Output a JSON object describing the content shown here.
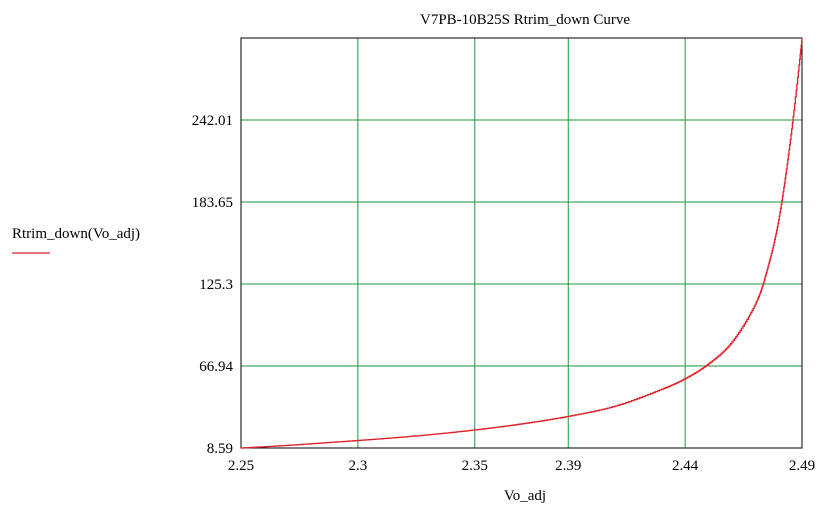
{
  "chart_data": {
    "type": "line",
    "title": "V7PB-10B25S Rtrim_down Curve",
    "xlabel": "Vo_adj",
    "ylabel": "Rtrim_down(Vo_adj)",
    "xlim": [
      2.25,
      2.49
    ],
    "ylim": [
      8.59,
      300.37
    ],
    "x_ticks": [
      2.25,
      2.3,
      2.35,
      2.39,
      2.44,
      2.49
    ],
    "x_tick_labels": [
      "2.25",
      "2.3",
      "2.35",
      "2.39",
      "2.44",
      "2.49"
    ],
    "y_ticks": [
      8.59,
      66.94,
      125.3,
      183.65,
      242.01
    ],
    "y_tick_labels": [
      "8.59",
      "66.94",
      "125.3",
      "183.65",
      "242.01"
    ],
    "grid": true,
    "series": [
      {
        "name": "Rtrim_down(Vo_adj)",
        "color": "#e0202a",
        "x": [
          2.25,
          2.27,
          2.29,
          2.31,
          2.33,
          2.35,
          2.37,
          2.39,
          2.41,
          2.43,
          2.44,
          2.45,
          2.46,
          2.47,
          2.475,
          2.48,
          2.485,
          2.49
        ],
        "y": [
          8.59,
          10.5,
          12.8,
          15.2,
          18.0,
          21.5,
          25.8,
          31.2,
          38.5,
          50.5,
          58.0,
          68.5,
          84.0,
          111.0,
          135.0,
          171.0,
          228.0,
          300.37
        ]
      }
    ]
  },
  "colors": {
    "grid": "#1a9a3a",
    "line": "#e0202a",
    "frame": "#000000"
  }
}
